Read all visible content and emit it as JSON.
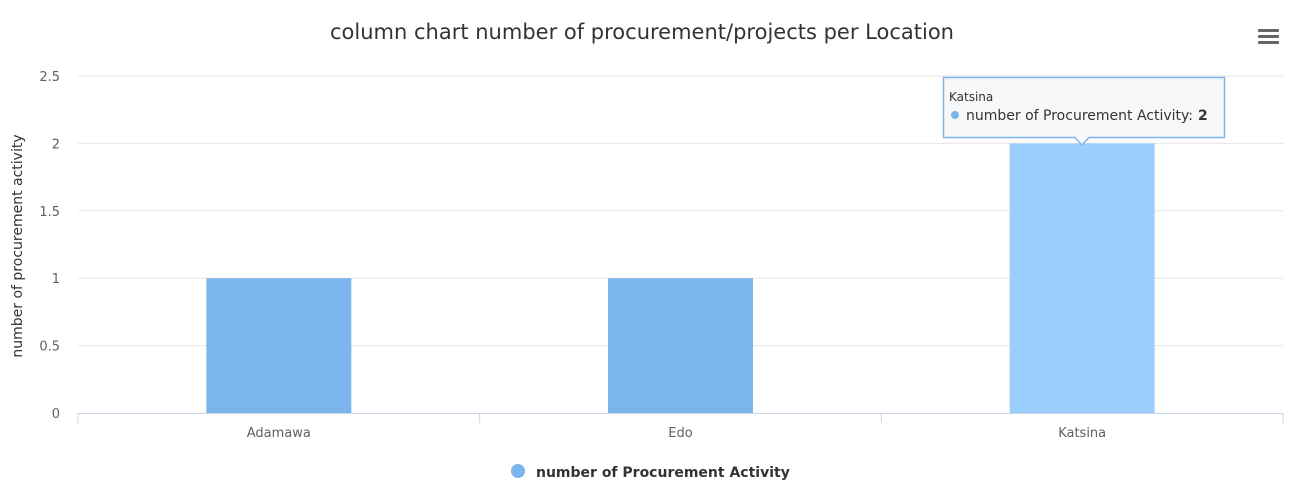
{
  "chart_data": {
    "type": "bar",
    "title": "column chart number of procurement/projects per Location",
    "xlabel": "",
    "ylabel": "number of procurement activity",
    "categories": [
      "Adamawa",
      "Edo",
      "Katsina"
    ],
    "series": [
      {
        "name": "number of Procurement Activity",
        "values": [
          1,
          1,
          2
        ]
      }
    ],
    "ylim": [
      0,
      2.5
    ],
    "yticks": [
      "0",
      "0.5",
      "1",
      "1.5",
      "2",
      "2.5"
    ],
    "grid": true,
    "legend_position": "bottom-center",
    "colors": {
      "bar": "#7cb5ec",
      "bar_hover": "#9acffd"
    }
  },
  "tooltip": {
    "category": "Katsina",
    "series_label": "number of Procurement Activity",
    "separator": ":",
    "value": "2"
  },
  "menu": {
    "icon": "hamburger-menu-icon"
  }
}
